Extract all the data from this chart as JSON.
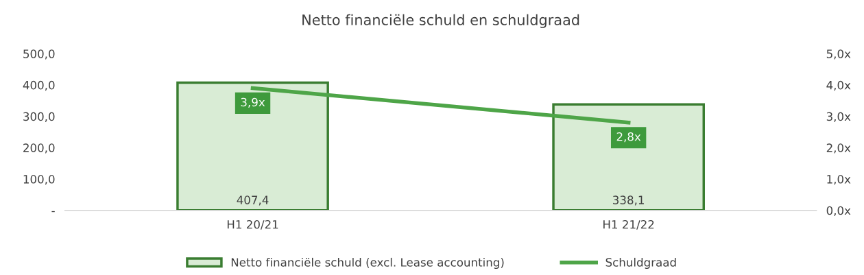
{
  "chart_data": {
    "type": "bar",
    "title": "Netto financiële schuld en schuldgraad",
    "categories": [
      "H1 20/21",
      "H1 21/22"
    ],
    "series": [
      {
        "name": "Netto financiële schuld (excl. Lease accounting)",
        "color": "#d9ecd5",
        "values": [
          407.4,
          338.1
        ],
        "value_labels": [
          "407,4",
          "338,1"
        ]
      },
      {
        "name": "Schuldgraad",
        "type": "line",
        "axis": "y2",
        "color": "#4ea548",
        "values": [
          3.9,
          2.8
        ],
        "value_labels": [
          "3,9x",
          "2,8x"
        ]
      }
    ],
    "ylim": [
      0,
      500
    ],
    "yticks": [
      {
        "value": 0,
        "label": "-"
      },
      {
        "value": 100,
        "label": "100,0"
      },
      {
        "value": 200,
        "label": "200,0"
      },
      {
        "value": 300,
        "label": "300,0"
      },
      {
        "value": 400,
        "label": "400,0"
      },
      {
        "value": 500,
        "label": "500,0"
      }
    ],
    "y2lim": [
      0,
      5
    ],
    "y2ticks": [
      {
        "value": 0,
        "label": "0,0x"
      },
      {
        "value": 1,
        "label": "1,0x"
      },
      {
        "value": 2,
        "label": "2,0x"
      },
      {
        "value": 3,
        "label": "3,0x"
      },
      {
        "value": 4,
        "label": "4,0x"
      },
      {
        "value": 5,
        "label": "5,0x"
      }
    ],
    "grid": false,
    "legend": "bottom"
  }
}
